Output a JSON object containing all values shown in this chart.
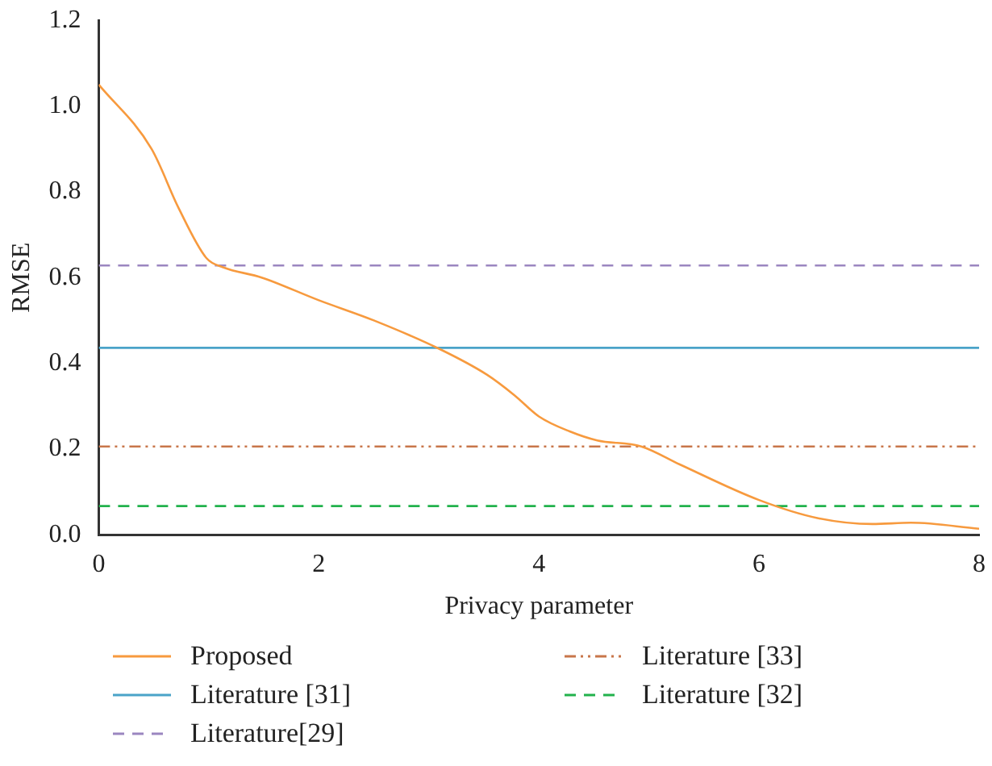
{
  "chart_data": {
    "type": "line",
    "xlabel": "Privacy parameter",
    "ylabel": "RMSE",
    "xlim": [
      0,
      8
    ],
    "xticks": [
      0,
      2,
      4,
      6,
      8
    ],
    "ylim": [
      0,
      1.2
    ],
    "yticks": [
      {
        "value": 0,
        "label": "0.0"
      },
      0.2,
      0.4,
      0.6,
      0.8,
      {
        "value": 1,
        "label": "1.0"
      },
      1.2
    ],
    "legend": "bottom",
    "grid": false,
    "marker": "none",
    "series": [
      {
        "name": "Proposed",
        "color": "#f79a3e",
        "line_style": "solid",
        "x": [
          0,
          0.48,
          0.73,
          0.98,
          1.13,
          1.48,
          2,
          2.5,
          3.1,
          3.53,
          3.78,
          4,
          4.28,
          4.53,
          4.93,
          5.28,
          6,
          6.53,
          7.03,
          7.38,
          8
        ],
        "values": [
          1.05,
          0.9,
          0.76,
          0.645,
          0.624,
          0.6,
          0.547,
          0.5,
          0.433,
          0.373,
          0.325,
          0.276,
          0.241,
          0.22,
          0.206,
          0.164,
          0.081,
          0.039,
          0.025,
          0.028,
          0.014
        ]
      },
      {
        "name": "Literature [31]",
        "color": "#4aa3c8",
        "line_style": "solid",
        "x": [
          0,
          8
        ],
        "values": [
          0.436,
          0.436
        ]
      },
      {
        "name": "Literature[29]",
        "color": "#9b86c0",
        "line_style": "dashed",
        "x": [
          0,
          8
        ],
        "values": [
          0.628,
          0.628
        ]
      },
      {
        "name": "Literature [33]",
        "color": "#c8764a",
        "line_style": "dotted",
        "x": [
          0,
          8
        ],
        "values": [
          0.206,
          0.206
        ]
      },
      {
        "name": "Literature [32]",
        "color": "#22b24c",
        "line_style": "dashed",
        "x": [
          0,
          8
        ],
        "values": [
          0.067,
          0.067
        ]
      }
    ]
  }
}
